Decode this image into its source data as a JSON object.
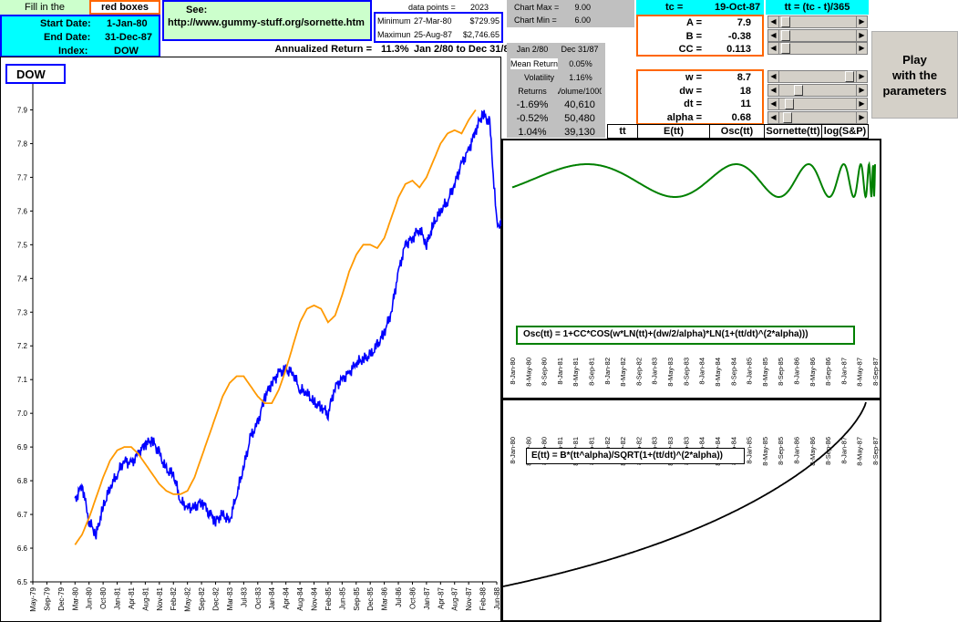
{
  "left_panel": {
    "fill_label": "Fill in the",
    "red_boxes": "red boxes",
    "start_label": "Start Date:",
    "start_value": "1-Jan-80",
    "end_label": "End Date:",
    "end_value": "31-Dec-87",
    "index_label": "Index:",
    "index_value": "DOW"
  },
  "see": {
    "label": "See:",
    "url": "http://www.gummy-stuff.org/sornette.htm"
  },
  "stats": {
    "data_points_label": "data points =",
    "data_points": "2023",
    "minimum_label": "Minimum",
    "minimum_date": "27-Mar-80",
    "minimum_value": "$729.95",
    "maximum_label": "Maximum",
    "maximum_date": "25-Aug-87",
    "maximum_value": "$2,746.65",
    "annualized_label": "Annualized Return =",
    "annualized_value": "11.3%",
    "annualized_range": "Jan 2/80 to Dec 31/87"
  },
  "chart_axis": {
    "max_label": "Chart Max =",
    "max_value": "9.00",
    "min_label": "Chart Min =",
    "min_value": "6.00"
  },
  "returns_table": {
    "from": "Jan 2/80",
    "to": "Dec 31/87",
    "mean_label": "Mean Return",
    "mean_value": "0.05%",
    "vol_label": "Volatility",
    "vol_value": "1.16%",
    "col1": "Returns",
    "col2": "Volume/1000",
    "rows": [
      {
        "ret": "-1.69%",
        "vol": "40,610"
      },
      {
        "ret": "-0.52%",
        "vol": "50,480"
      },
      {
        "ret": "1.04%",
        "vol": "39,130"
      }
    ]
  },
  "params": {
    "tc_label": "tc =",
    "tc_value": "19-Oct-87",
    "tt_formula": "tt = (tc - t)/365",
    "A_label": "A =",
    "A_value": "7.9",
    "B_label": "B =",
    "B_value": "-0.38",
    "CC_label": "CC =",
    "CC_value": "0.113",
    "w_label": "w =",
    "w_value": "8.7",
    "dw_label": "dw =",
    "dw_value": "18",
    "dt_label": "dt =",
    "dt_value": "11",
    "alpha_label": "alpha =",
    "alpha_value": "0.68"
  },
  "play_button": {
    "line1": "Play",
    "line2": "with the",
    "line3": "parameters"
  },
  "col_headers": [
    "tt",
    "E(tt)",
    "Osc(tt)",
    "Sornette(tt)",
    "log(S&P)"
  ],
  "osc_formula": "Osc(tt) = 1+CC*COS(w*LN(tt)+(dw/2/alpha)*LN(1+(tt/dt)^(2*alpha)))",
  "e_formula": "E(tt) = B*(tt^alpha)/SQRT(1+(tt/dt)^(2*alpha))",
  "chart_data": [
    {
      "type": "line",
      "legend": "DOW",
      "ylim": [
        6.5,
        7.95
      ],
      "yticks": [
        "6.5",
        "6.6",
        "6.7",
        "6.8",
        "6.9",
        "7.0",
        "7.1",
        "7.2",
        "7.3",
        "7.4",
        "7.5",
        "7.6",
        "7.7",
        "7.8",
        "7.9"
      ],
      "xticks": [
        "May-79",
        "Sep-79",
        "Dec-79",
        "Mar-80",
        "Jun-80",
        "Oct-80",
        "Jan-81",
        "Apr-81",
        "Aug-81",
        "Nov-81",
        "Feb-82",
        "May-82",
        "Sep-82",
        "Dec-82",
        "Mar-83",
        "Jul-83",
        "Oct-83",
        "Jan-84",
        "Apr-84",
        "Aug-84",
        "Nov-84",
        "Feb-85",
        "Jun-85",
        "Sep-85",
        "Dec-85",
        "Mar-86",
        "Jul-86",
        "Oct-86",
        "Jan-87",
        "Apr-87",
        "Aug-87",
        "Nov-87",
        "Feb-88",
        "Jun-88"
      ],
      "series": [
        {
          "color": "#0000ff",
          "x": [
            0.5,
            1.0,
            1.5,
            2.0,
            2.5,
            3.0,
            3.5,
            4.0,
            4.5,
            5.0,
            5.5,
            6.0,
            6.5,
            7.0,
            7.5,
            8.0,
            8.5,
            9.0,
            9.5,
            10.0,
            10.5,
            11.0,
            11.5,
            12.0,
            12.5,
            13.0,
            13.5,
            14.0,
            14.5,
            15.0,
            15.5,
            16.0,
            16.5,
            17.0,
            17.5,
            18.0,
            18.5,
            19.0,
            19.5,
            20.0,
            20.5,
            21.0,
            21.5,
            22.0,
            22.5,
            23.0,
            23.5,
            24.0,
            24.5,
            25.0,
            25.5,
            26.0,
            26.5,
            27.0,
            27.5,
            28.0,
            28.5,
            29.0,
            29.5,
            30.0,
            30.5,
            31.0,
            31.5,
            32.0,
            32.5,
            33.0,
            33.5
          ],
          "y": [
            6.74,
            6.79,
            6.68,
            6.64,
            6.72,
            6.78,
            6.82,
            6.86,
            6.85,
            6.88,
            6.91,
            6.92,
            6.88,
            6.83,
            6.82,
            6.74,
            6.72,
            6.72,
            6.74,
            6.71,
            6.68,
            6.7,
            6.68,
            6.76,
            6.84,
            6.93,
            6.97,
            7.05,
            7.09,
            7.12,
            7.13,
            7.12,
            7.07,
            7.06,
            7.03,
            7.02,
            7.0,
            7.08,
            7.1,
            7.12,
            7.15,
            7.16,
            7.17,
            7.2,
            7.24,
            7.3,
            7.42,
            7.5,
            7.52,
            7.55,
            7.5,
            7.56,
            7.6,
            7.63,
            7.68,
            7.74,
            7.78,
            7.84,
            7.89,
            7.86,
            7.56,
            7.56,
            7.58,
            7.6,
            7.61,
            7.62,
            7.62
          ]
        },
        {
          "color": "#ff9900",
          "x": [
            0.5,
            1.0,
            1.5,
            2.0,
            2.5,
            3.0,
            3.5,
            4.0,
            4.5,
            5.0,
            5.5,
            6.0,
            6.5,
            7.0,
            7.5,
            8.0,
            8.5,
            9.0,
            9.5,
            10.0,
            10.5,
            11.0,
            11.5,
            12.0,
            12.5,
            13.0,
            13.5,
            14.0,
            14.5,
            15.0,
            15.5,
            16.0,
            16.5,
            17.0,
            17.5,
            18.0,
            18.5,
            19.0,
            19.5,
            20.0,
            20.5,
            21.0,
            21.5,
            22.0,
            22.5,
            23.0,
            23.5,
            24.0,
            24.5,
            25.0,
            25.5,
            26.0,
            26.5,
            27.0,
            27.5,
            28.0,
            28.5,
            29.0
          ],
          "y": [
            6.61,
            6.64,
            6.69,
            6.75,
            6.81,
            6.86,
            6.89,
            6.9,
            6.9,
            6.88,
            6.85,
            6.82,
            6.79,
            6.77,
            6.76,
            6.76,
            6.77,
            6.81,
            6.87,
            6.93,
            6.99,
            7.05,
            7.09,
            7.11,
            7.11,
            7.08,
            7.05,
            7.03,
            7.03,
            7.07,
            7.13,
            7.2,
            7.27,
            7.31,
            7.32,
            7.31,
            7.27,
            7.29,
            7.35,
            7.42,
            7.47,
            7.5,
            7.5,
            7.49,
            7.52,
            7.58,
            7.64,
            7.68,
            7.69,
            7.67,
            7.7,
            7.75,
            7.8,
            7.83,
            7.84,
            7.83,
            7.87,
            7.9
          ]
        }
      ]
    },
    {
      "type": "line",
      "title": "Osc(tt)",
      "xticks": [
        "8-Jan-80",
        "8-May-80",
        "8-Sep-80",
        "8-Jan-81",
        "8-May-81",
        "8-Sep-81",
        "8-Jan-82",
        "8-May-82",
        "8-Sep-82",
        "8-Jan-83",
        "8-May-83",
        "8-Sep-83",
        "8-Jan-84",
        "8-May-84",
        "8-Sep-84",
        "8-Jan-85",
        "8-May-85",
        "8-Sep-85",
        "8-Jan-86",
        "8-May-86",
        "8-Sep-86",
        "8-Jan-87",
        "8-May-87",
        "8-Sep-87"
      ],
      "series": [
        {
          "color": "#008000"
        }
      ]
    },
    {
      "type": "line",
      "title": "E(tt)",
      "xticks": [
        "8-Jan-80",
        "8-May-80",
        "8-Sep-80",
        "8-Jan-81",
        "8-May-81",
        "8-Sep-81",
        "8-Jan-82",
        "8-May-82",
        "8-Sep-82",
        "8-Jan-83",
        "8-May-83",
        "8-Sep-83",
        "8-Jan-84",
        "8-May-84",
        "8-Sep-84",
        "8-Jan-85",
        "8-May-85",
        "8-Sep-85",
        "8-Jan-86",
        "8-May-86",
        "8-Sep-86",
        "8-Jan-87",
        "8-May-87",
        "8-Sep-87"
      ],
      "series": [
        {
          "color": "#000000"
        }
      ]
    }
  ]
}
